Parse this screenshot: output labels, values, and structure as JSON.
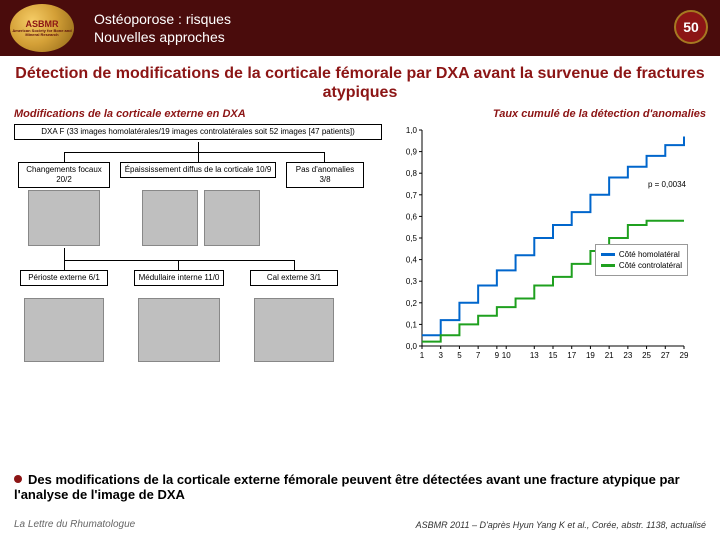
{
  "header": {
    "logo_text": "ASBMR",
    "logo_sub": "American Society for Bone and Mineral Research",
    "title_line1": "Ostéoporose : risques",
    "title_line2": "Nouvelles approches",
    "slide_number": "50"
  },
  "main_title": "Détection de modifications de la corticale fémorale par DXA avant la survenue de fractures atypiques",
  "sub_left": "Modifications de la corticale externe en DXA",
  "sub_right": "Taux cumulé de la détection d'anomalies",
  "tree": {
    "root": "DXA F (33 images homolatérales/19 images controlatérales soit 52 images [47 patients])",
    "l1a": "Changements focaux\n20/2",
    "l1b": "Épaississement diffus de la corticale\n10/9",
    "l1c": "Pas d'anomalies\n3/8",
    "l2a": "Périoste externe\n6/1",
    "l2b": "Médullaire interne\n11/0",
    "l2c": "Cal externe\n3/1"
  },
  "chart": {
    "type": "line",
    "ylim": [
      0.0,
      1.0
    ],
    "ytick_step": 0.1,
    "yticks": [
      "0,0",
      "0,1",
      "0,2",
      "0,3",
      "0,4",
      "0,5",
      "0,6",
      "0,7",
      "0,8",
      "0,9",
      "1,0"
    ],
    "xticks": [
      "1",
      "3",
      "5",
      "7",
      "9",
      "10",
      "13",
      "15",
      "17",
      "19",
      "21",
      "23",
      "25",
      "27",
      "29"
    ],
    "x_positions": [
      1,
      3,
      5,
      7,
      9,
      10,
      13,
      15,
      17,
      19,
      21,
      23,
      25,
      27,
      29
    ],
    "pvalue": "p = 0,0034",
    "legend": {
      "a": "Côté homolatéral",
      "b": "Côté controlatéral"
    },
    "series": {
      "homo": {
        "color": "#0066cc",
        "width": 2,
        "x": [
          1,
          3,
          5,
          7,
          9,
          11,
          13,
          15,
          17,
          19,
          21,
          23,
          25,
          27,
          29
        ],
        "y": [
          0.05,
          0.12,
          0.2,
          0.28,
          0.35,
          0.42,
          0.5,
          0.56,
          0.62,
          0.7,
          0.78,
          0.83,
          0.88,
          0.93,
          0.97
        ]
      },
      "contro": {
        "color": "#1fa01f",
        "width": 2,
        "x": [
          1,
          3,
          5,
          7,
          9,
          11,
          13,
          15,
          17,
          19,
          21,
          23,
          25,
          27,
          29
        ],
        "y": [
          0.02,
          0.05,
          0.1,
          0.14,
          0.18,
          0.22,
          0.28,
          0.32,
          0.38,
          0.44,
          0.5,
          0.56,
          0.58,
          0.58,
          0.58
        ]
      }
    },
    "plot_bg": "#ffffff",
    "label_fontsize": 8
  },
  "conclusion": "Des modifications de la corticale externe fémorale peuvent être détectées avant une fracture atypique par l'analyse de l'image de DXA",
  "footer_left": "La Lettre du Rhumatologue",
  "footer_right": "ASBMR 2011 – D'après Hyun Yang K et al., Corée, abstr. 1138, actualisé"
}
